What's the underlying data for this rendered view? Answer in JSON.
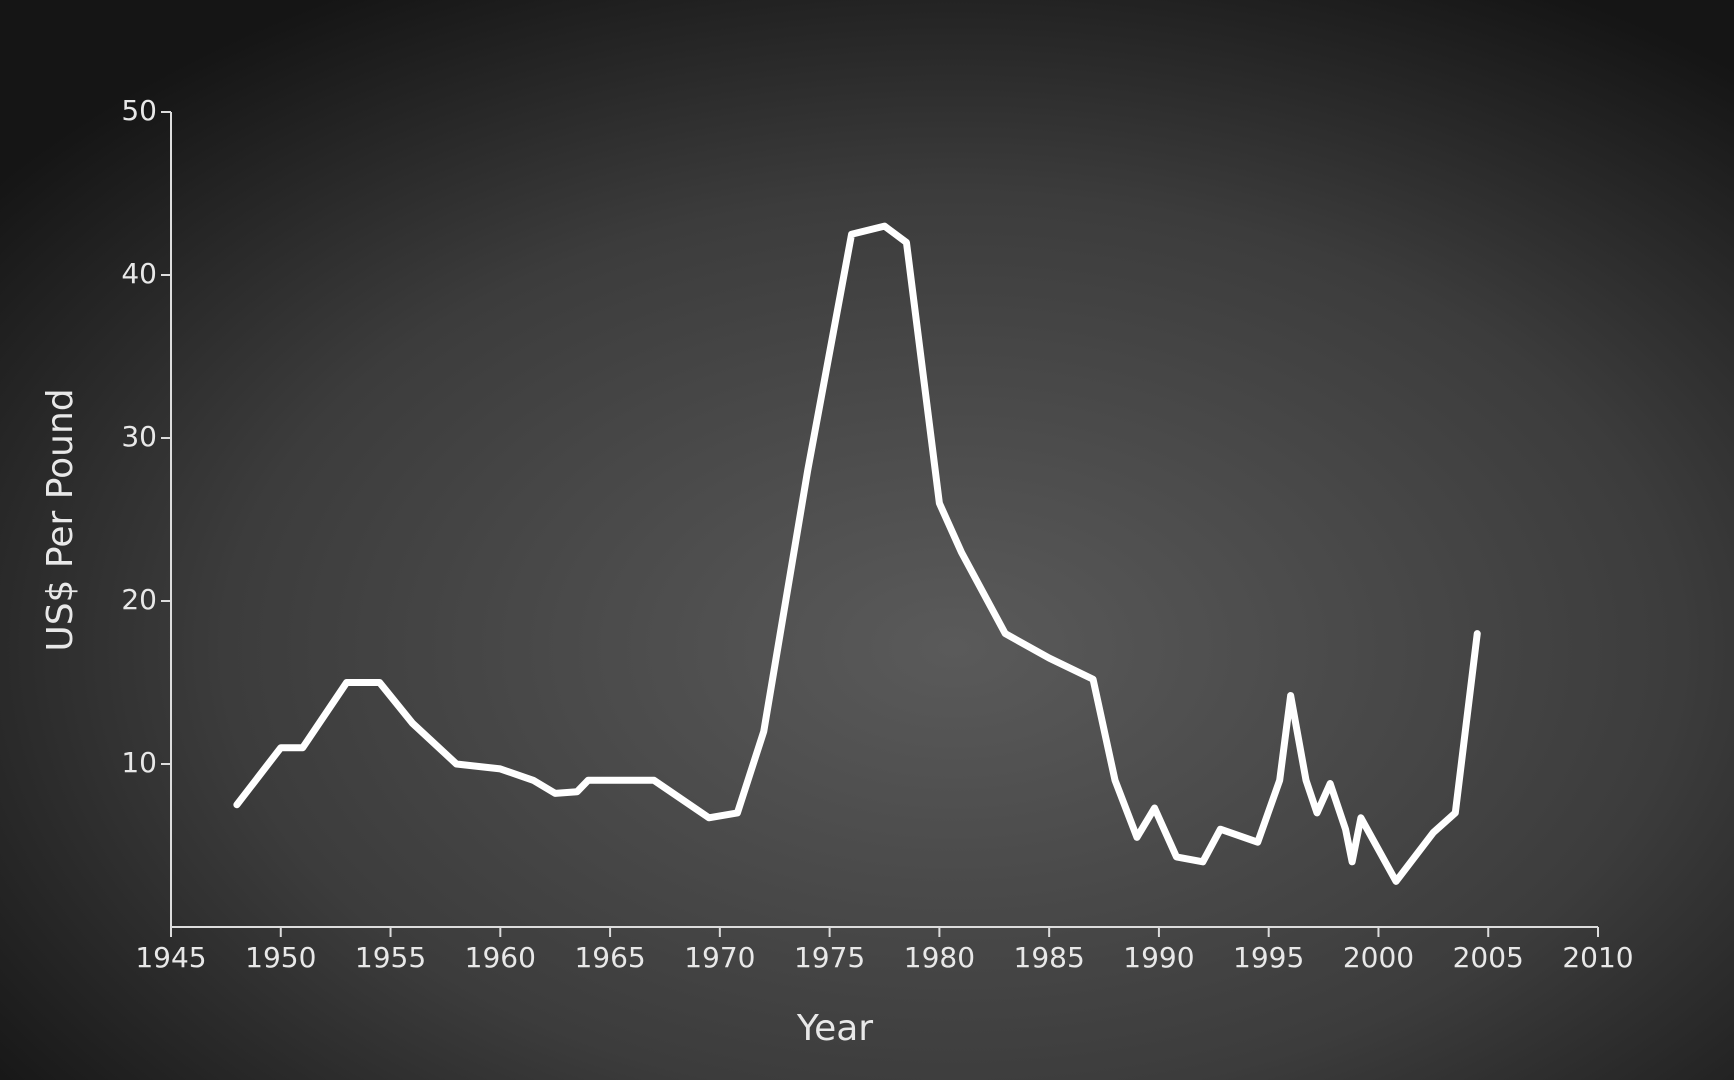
{
  "chart_data": {
    "type": "line",
    "x_label": "Year",
    "y_label": "US$ Per Pound",
    "xlim": [
      1945,
      2010
    ],
    "ylim": [
      0,
      50
    ],
    "xticks": [
      1945,
      1950,
      1955,
      1960,
      1965,
      1970,
      1975,
      1980,
      1985,
      1990,
      1995,
      2000,
      2005,
      2010
    ],
    "yticks": [
      10,
      20,
      30,
      40,
      50
    ],
    "grid": false,
    "series": [
      {
        "color": "#ffffff",
        "x": [
          1948,
          1950,
          1951,
          1953,
          1954.5,
          1956,
          1958,
          1960,
          1961.5,
          1962.5,
          1963.5,
          1964,
          1967,
          1969.5,
          1970.8,
          1972,
          1974,
          1976,
          1977.5,
          1978.5,
          1980,
          1981,
          1983,
          1985,
          1987,
          1988,
          1989,
          1989.8,
          1990.8,
          1992,
          1992.8,
          1994.5,
          1995.5,
          1996,
          1996.7,
          1997.2,
          1997.8,
          1998.5,
          1998.8,
          1999.2,
          2000.8,
          2002.5,
          2003.5,
          2004.5
        ],
        "values": [
          7.5,
          11,
          11,
          15,
          15,
          12.5,
          10,
          9.7,
          9,
          8.2,
          8.3,
          9,
          9,
          6.7,
          7,
          12,
          28,
          42.5,
          43,
          42,
          26,
          23,
          18,
          16.5,
          15.2,
          9,
          5.5,
          7.3,
          4.3,
          4,
          6,
          5.2,
          9,
          14.2,
          9,
          7,
          8.8,
          6,
          4,
          6.7,
          2.8,
          5.8,
          7,
          18
        ]
      }
    ]
  }
}
